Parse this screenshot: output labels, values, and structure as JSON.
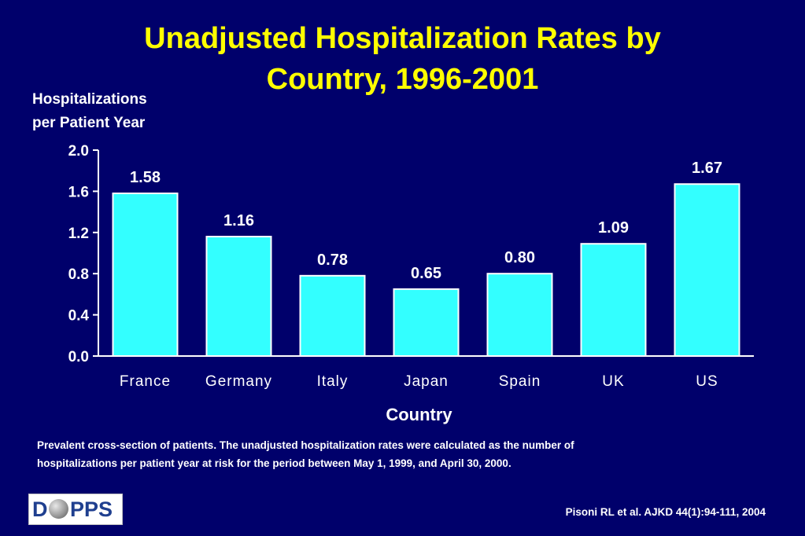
{
  "title_line1": "Unadjusted Hospitalization Rates by",
  "title_line2": "Country, 1996-2001",
  "ylabel_line1": "Hospitalizations",
  "ylabel_line2": "per Patient Year",
  "note_line1": "Prevalent cross-section of patients.  The unadjusted hospitalization rates were calculated as the number of",
  "note_line2": "hospitalizations per patient year at risk for the period between May 1, 1999, and April 30, 2000.",
  "citation": "Pisoni RL et al. AJKD 44(1):94-111, 2004",
  "logo": {
    "left": "D",
    "right": "PPS"
  },
  "colors": {
    "background": "#00006b",
    "title": "#ffff00",
    "bar": "#33ffff",
    "text": "#ffffff"
  },
  "chart_data": {
    "type": "bar",
    "title": "Unadjusted Hospitalization Rates by Country, 1996-2001",
    "xlabel": "Country",
    "ylabel": "Hospitalizations per Patient Year",
    "categories": [
      "France",
      "Germany",
      "Italy",
      "Japan",
      "Spain",
      "UK",
      "US"
    ],
    "values": [
      1.58,
      1.16,
      0.78,
      0.65,
      0.8,
      1.09,
      1.67
    ],
    "value_labels": [
      "1.58",
      "1.16",
      "0.78",
      "0.65",
      "0.80",
      "1.09",
      "1.67"
    ],
    "ylim": [
      0,
      2.0
    ],
    "yticks": [
      "0.0",
      "0.4",
      "0.8",
      "1.2",
      "1.6",
      "2.0"
    ],
    "grid": false,
    "legend": "none"
  }
}
